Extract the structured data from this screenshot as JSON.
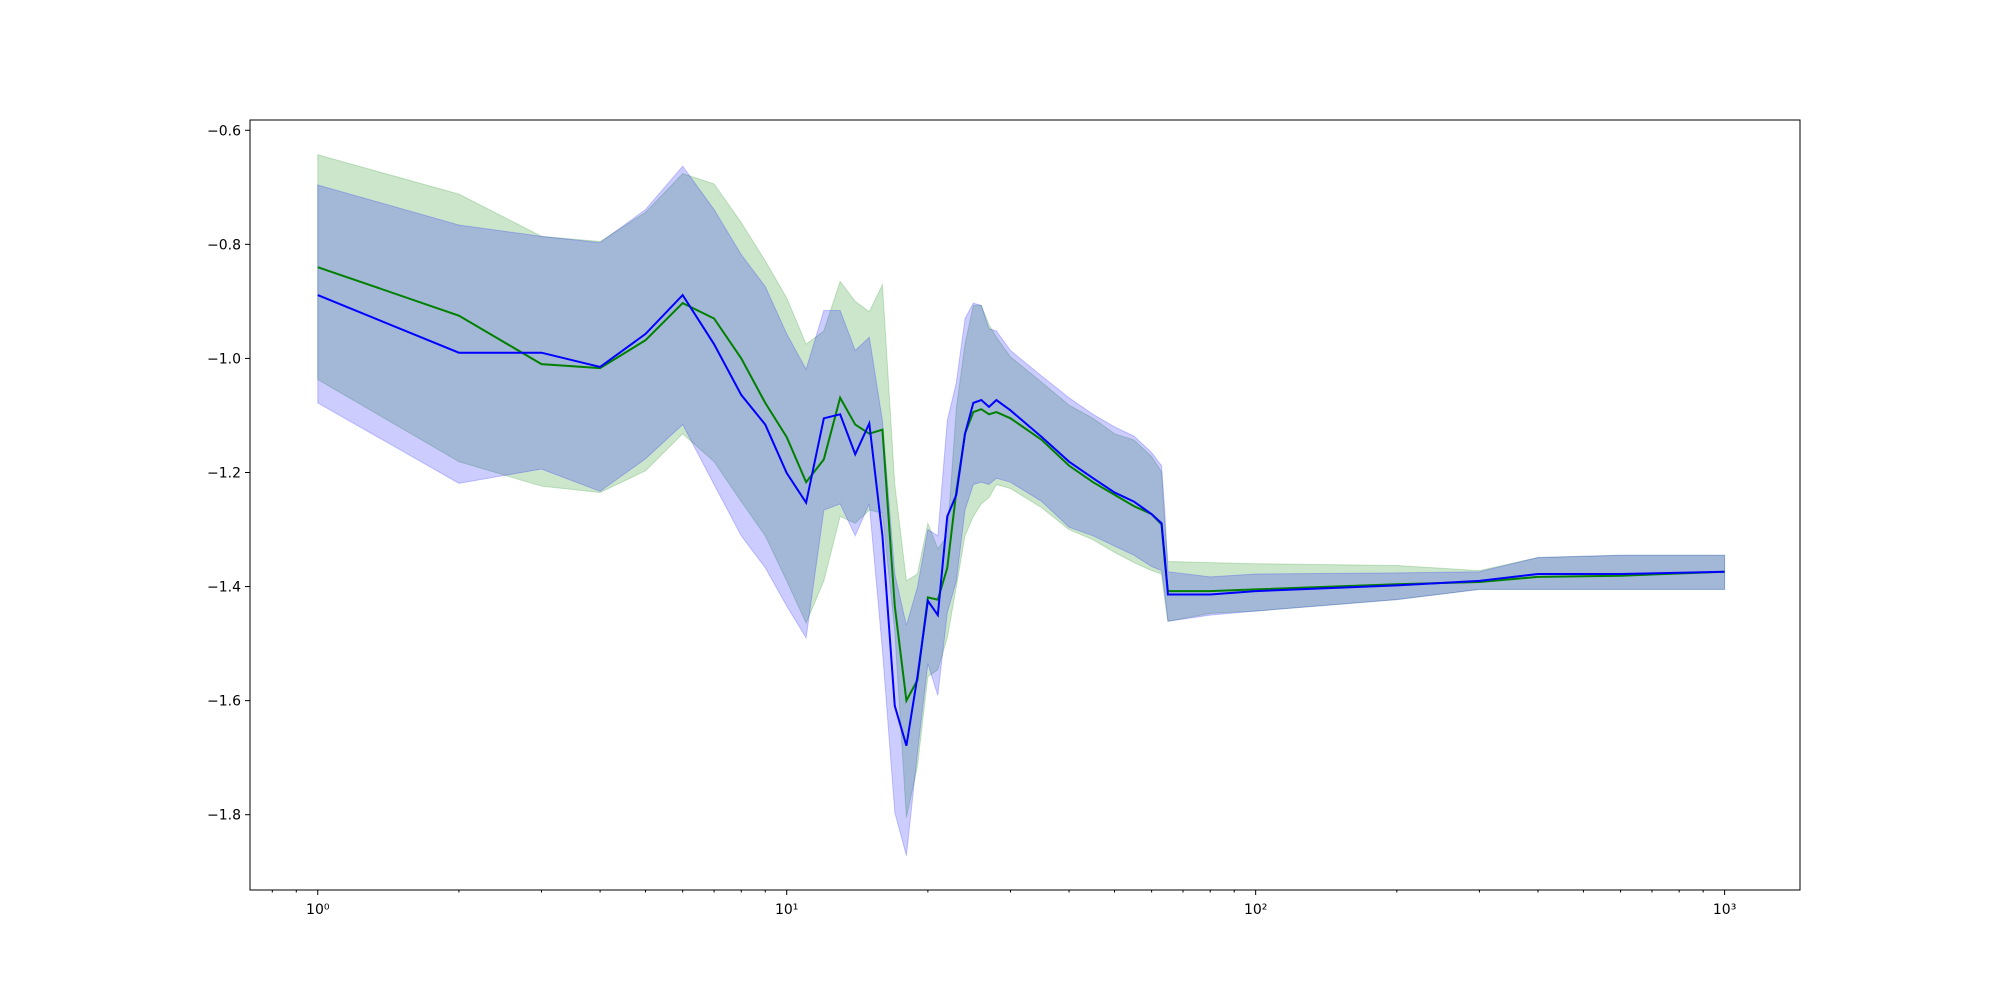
{
  "chart_data": {
    "type": "line",
    "log_x": true,
    "xlim": [
      0.717,
      1448
    ],
    "ylim": [
      -1.932,
      -0.582
    ],
    "xticks": [
      {
        "value": 1,
        "label": "10⁰"
      },
      {
        "value": 10,
        "label": "10¹"
      },
      {
        "value": 100,
        "label": "10²"
      },
      {
        "value": 1000,
        "label": "10³"
      }
    ],
    "xminorticks": [
      0.8,
      0.9,
      2,
      3,
      4,
      5,
      6,
      7,
      8,
      9,
      20,
      30,
      40,
      50,
      60,
      70,
      80,
      90,
      200,
      300,
      400,
      500,
      600,
      700,
      800,
      900
    ],
    "yticks": [
      {
        "value": -0.6,
        "label": "−0.6"
      },
      {
        "value": -0.8,
        "label": "−0.8"
      },
      {
        "value": -1.0,
        "label": "−1.0"
      },
      {
        "value": -1.2,
        "label": "−1.2"
      },
      {
        "value": -1.4,
        "label": "−1.4"
      },
      {
        "value": -1.6,
        "label": "−1.6"
      },
      {
        "value": -1.8,
        "label": "−1.8"
      }
    ],
    "x": [
      1,
      2,
      3,
      4,
      5,
      6,
      7,
      8,
      9,
      10,
      11,
      12,
      13,
      14,
      15,
      16,
      17,
      18,
      19,
      20,
      21,
      22,
      23,
      24,
      25,
      26,
      27,
      28,
      30,
      35,
      40,
      45,
      50,
      55,
      60,
      63,
      64,
      65,
      80,
      100,
      200,
      300,
      400,
      600,
      1000
    ],
    "series": [
      {
        "color": "green",
        "band_opacity": 0.2,
        "values": [
          -0.84,
          -0.925,
          -1.01,
          -1.017,
          -0.968,
          -0.903,
          -0.93,
          -1.0,
          -1.078,
          -1.138,
          -1.217,
          -1.177,
          -1.069,
          -1.116,
          -1.132,
          -1.125,
          -1.434,
          -1.6,
          -1.564,
          -1.419,
          -1.423,
          -1.367,
          -1.233,
          -1.132,
          -1.094,
          -1.089,
          -1.098,
          -1.094,
          -1.105,
          -1.143,
          -1.188,
          -1.217,
          -1.239,
          -1.259,
          -1.273,
          -1.291,
          -1.356,
          -1.408,
          -1.408,
          -1.405,
          -1.396,
          -1.392,
          -1.383,
          -1.381,
          -1.374
        ],
        "lower": [
          -1.037,
          -1.181,
          -1.224,
          -1.235,
          -1.197,
          -1.132,
          -1.181,
          -1.251,
          -1.311,
          -1.39,
          -1.464,
          -1.39,
          -1.277,
          -1.289,
          -1.266,
          -1.271,
          -1.479,
          -1.805,
          -1.715,
          -1.558,
          -1.546,
          -1.49,
          -1.4,
          -1.311,
          -1.277,
          -1.255,
          -1.244,
          -1.221,
          -1.228,
          -1.262,
          -1.3,
          -1.318,
          -1.34,
          -1.358,
          -1.372,
          -1.378,
          -1.423,
          -1.461,
          -1.447,
          -1.443,
          -1.423,
          -1.405,
          -1.405,
          -1.405,
          -1.405
        ],
        "upper": [
          -0.643,
          -0.712,
          -0.786,
          -0.795,
          -0.744,
          -0.676,
          -0.694,
          -0.762,
          -0.829,
          -0.894,
          -0.975,
          -0.952,
          -0.865,
          -0.9,
          -0.918,
          -0.871,
          -1.221,
          -1.39,
          -1.378,
          -1.289,
          -1.334,
          -1.311,
          -1.087,
          -0.975,
          -0.907,
          -0.907,
          -0.941,
          -0.963,
          -0.997,
          -1.042,
          -1.082,
          -1.105,
          -1.132,
          -1.143,
          -1.172,
          -1.199,
          -1.289,
          -1.356,
          -1.358,
          -1.36,
          -1.363,
          -1.372,
          -1.349,
          -1.345,
          -1.345
        ]
      },
      {
        "color": "blue",
        "band_opacity": 0.2,
        "values": [
          -0.889,
          -0.99,
          -0.99,
          -1.015,
          -0.957,
          -0.889,
          -0.975,
          -1.064,
          -1.116,
          -1.201,
          -1.253,
          -1.105,
          -1.098,
          -1.168,
          -1.114,
          -1.311,
          -1.609,
          -1.679,
          -1.558,
          -1.425,
          -1.45,
          -1.277,
          -1.239,
          -1.132,
          -1.078,
          -1.073,
          -1.085,
          -1.073,
          -1.091,
          -1.138,
          -1.181,
          -1.21,
          -1.235,
          -1.251,
          -1.273,
          -1.289,
          -1.349,
          -1.414,
          -1.414,
          -1.408,
          -1.398,
          -1.39,
          -1.378,
          -1.378,
          -1.374
        ],
        "lower": [
          -1.078,
          -1.219,
          -1.194,
          -1.233,
          -1.176,
          -1.116,
          -1.221,
          -1.311,
          -1.367,
          -1.434,
          -1.49,
          -1.266,
          -1.255,
          -1.311,
          -1.255,
          -1.512,
          -1.796,
          -1.872,
          -1.692,
          -1.535,
          -1.591,
          -1.446,
          -1.39,
          -1.266,
          -1.221,
          -1.217,
          -1.221,
          -1.21,
          -1.217,
          -1.251,
          -1.296,
          -1.311,
          -1.329,
          -1.345,
          -1.365,
          -1.372,
          -1.412,
          -1.461,
          -1.45,
          -1.443,
          -1.423,
          -1.405,
          -1.405,
          -1.405,
          -1.405
        ],
        "upper": [
          -0.696,
          -0.766,
          -0.786,
          -0.797,
          -0.739,
          -0.663,
          -0.739,
          -0.818,
          -0.874,
          -0.957,
          -1.019,
          -0.916,
          -0.916,
          -0.986,
          -0.963,
          -1.109,
          -1.378,
          -1.468,
          -1.401,
          -1.3,
          -1.311,
          -1.109,
          -1.042,
          -0.93,
          -0.903,
          -0.907,
          -0.948,
          -0.952,
          -0.986,
          -1.031,
          -1.069,
          -1.098,
          -1.12,
          -1.136,
          -1.165,
          -1.188,
          -1.266,
          -1.374,
          -1.383,
          -1.378,
          -1.376,
          -1.374,
          -1.349,
          -1.345,
          -1.345
        ]
      }
    ]
  }
}
